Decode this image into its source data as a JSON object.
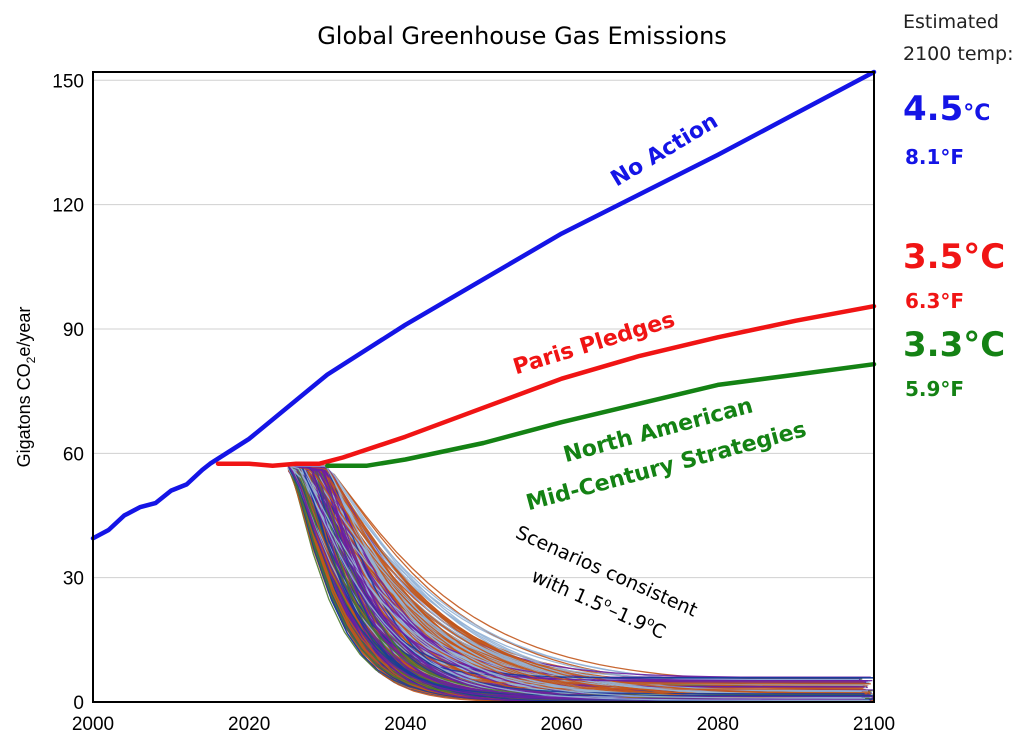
{
  "chart_data": {
    "type": "line",
    "title": "Global Greenhouse Gas Emissions",
    "xlabel": "",
    "ylabel": "Gigatons CO2e/year",
    "ylabel_parts": [
      "Gigatons CO",
      "2",
      "e/year"
    ],
    "xlim": [
      2000,
      2100
    ],
    "ylim": [
      0,
      152
    ],
    "x_ticks": [
      2000,
      2020,
      2040,
      2060,
      2080,
      2100
    ],
    "y_ticks": [
      0,
      30,
      60,
      90,
      120,
      150
    ],
    "grid": "horizontal",
    "series": [
      {
        "name": "No Action",
        "color": "#1414e6",
        "points": [
          [
            2000,
            39.5
          ],
          [
            2002,
            41.5
          ],
          [
            2004,
            45
          ],
          [
            2006,
            47
          ],
          [
            2008,
            48
          ],
          [
            2010,
            51
          ],
          [
            2012,
            52.5
          ],
          [
            2014,
            56
          ],
          [
            2015,
            57.5
          ],
          [
            2020,
            63.5
          ],
          [
            2030,
            79
          ],
          [
            2040,
            91
          ],
          [
            2050,
            102
          ],
          [
            2060,
            113
          ],
          [
            2070,
            122.5
          ],
          [
            2080,
            132
          ],
          [
            2090,
            142
          ],
          [
            2100,
            152
          ]
        ]
      },
      {
        "name": "Paris Pledges",
        "color": "#f01414",
        "points": [
          [
            2016,
            57.5
          ],
          [
            2020,
            57.5
          ],
          [
            2023,
            57
          ],
          [
            2026,
            57.5
          ],
          [
            2029,
            57.5
          ],
          [
            2032,
            59
          ],
          [
            2040,
            64
          ],
          [
            2050,
            71
          ],
          [
            2060,
            78
          ],
          [
            2070,
            83.5
          ],
          [
            2080,
            88
          ],
          [
            2090,
            92
          ],
          [
            2100,
            95.5
          ]
        ]
      },
      {
        "name": "North American Mid-Century Strategies",
        "color": "#148214",
        "points": [
          [
            2030,
            57
          ],
          [
            2035,
            57
          ],
          [
            2040,
            58.5
          ],
          [
            2050,
            62.5
          ],
          [
            2060,
            67.5
          ],
          [
            2070,
            72
          ],
          [
            2080,
            76.5
          ],
          [
            2090,
            79
          ],
          [
            2100,
            81.5
          ]
        ]
      }
    ],
    "scenarios": {
      "name": "Scenarios consistent with 1.5°–1.9°C",
      "start": [
        2025,
        57
      ],
      "colors": [
        "#93b3d6",
        "#93b3d6",
        "#93b3d6",
        "#c2561c",
        "#6a1fa3",
        "#1a3c9a",
        "#4e7a2c"
      ],
      "count": 420
    },
    "annotations": {
      "no_action": "No Action",
      "paris": "Paris Pledges",
      "na_line1": "North American",
      "na_line2": "Mid-Century Strategies",
      "scen_line1": "Scenarios consistent",
      "scen_line2_a": "with 1.5",
      "scen_line2_b": "o",
      "scen_line2_c": "–1.9",
      "scen_line2_d": "o",
      "scen_line2_e": "C"
    },
    "side_panel": {
      "heading_line1": "Estimated",
      "heading_line2": "2100 temp:",
      "blue_c_num": "4.5",
      "blue_c_unit": "°C",
      "blue_f": "8.1°F",
      "red_c": "3.5°C",
      "red_f": "6.3°F",
      "green_c": "3.3°C",
      "green_f": "5.9°F"
    }
  }
}
